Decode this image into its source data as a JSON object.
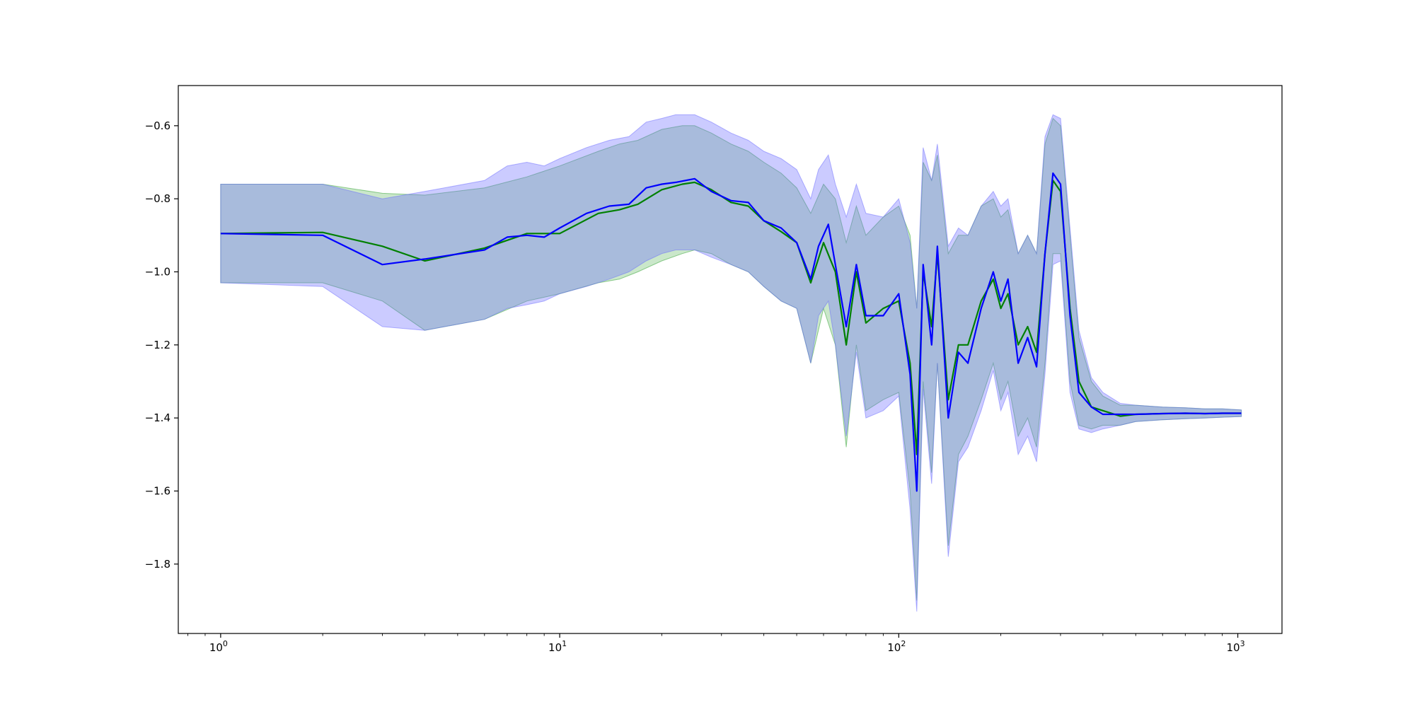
{
  "chart_data": {
    "type": "line",
    "title": "",
    "xlabel": "",
    "ylabel": "",
    "xscale": "log",
    "xlim": [
      0.75,
      1350
    ],
    "ylim": [
      -1.99,
      -0.49
    ],
    "grid": false,
    "legend": "none",
    "x_ticks": [
      {
        "value": 1,
        "base": "10",
        "exp": "0"
      },
      {
        "value": 10,
        "base": "10",
        "exp": "1"
      },
      {
        "value": 100,
        "base": "10",
        "exp": "2"
      },
      {
        "value": 1000,
        "base": "10",
        "exp": "3"
      }
    ],
    "y_ticks": [
      {
        "value": -0.6,
        "label": "−0.6"
      },
      {
        "value": -0.8,
        "label": "−0.8"
      },
      {
        "value": -1.0,
        "label": "−1.0"
      },
      {
        "value": -1.2,
        "label": "−1.2"
      },
      {
        "value": -1.4,
        "label": "−1.4"
      },
      {
        "value": -1.6,
        "label": "−1.6"
      },
      {
        "value": -1.8,
        "label": "−1.8"
      }
    ],
    "series": [
      {
        "color": "#008000",
        "band_color": "#2ca02c",
        "band_opacity": 0.25,
        "x": [
          1,
          2,
          3,
          4,
          6,
          8,
          10,
          13,
          15,
          17,
          20,
          23,
          25,
          28,
          32,
          36,
          40,
          45,
          50,
          55,
          60,
          65,
          70,
          75,
          80,
          90,
          100,
          108,
          113,
          118,
          125,
          130,
          140,
          150,
          160,
          175,
          190,
          200,
          210,
          225,
          240,
          255,
          270,
          285,
          300,
          320,
          340,
          370,
          400,
          450,
          500,
          600,
          700,
          800,
          900,
          1024
        ],
        "values": [
          -0.895,
          -0.892,
          -0.93,
          -0.97,
          -0.935,
          -0.895,
          -0.895,
          -0.84,
          -0.83,
          -0.815,
          -0.775,
          -0.76,
          -0.755,
          -0.775,
          -0.81,
          -0.82,
          -0.86,
          -0.89,
          -0.92,
          -1.03,
          -0.92,
          -1.0,
          -1.2,
          -1.0,
          -1.14,
          -1.1,
          -1.08,
          -1.25,
          -1.5,
          -1.0,
          -1.15,
          -0.95,
          -1.35,
          -1.2,
          -1.2,
          -1.08,
          -1.02,
          -1.1,
          -1.06,
          -1.2,
          -1.15,
          -1.22,
          -0.95,
          -0.75,
          -0.78,
          -1.1,
          -1.3,
          -1.37,
          -1.38,
          -1.395,
          -1.39,
          -1.388,
          -1.387,
          -1.388,
          -1.387,
          -1.387
        ],
        "upper": [
          -0.76,
          -0.76,
          -0.785,
          -0.79,
          -0.77,
          -0.74,
          -0.71,
          -0.67,
          -0.65,
          -0.64,
          -0.61,
          -0.6,
          -0.6,
          -0.62,
          -0.65,
          -0.67,
          -0.7,
          -0.73,
          -0.77,
          -0.84,
          -0.76,
          -0.8,
          -0.92,
          -0.82,
          -0.9,
          -0.85,
          -0.82,
          -0.9,
          -1.1,
          -0.7,
          -0.75,
          -0.68,
          -0.95,
          -0.9,
          -0.9,
          -0.82,
          -0.8,
          -0.85,
          -0.83,
          -0.95,
          -0.9,
          -0.95,
          -0.65,
          -0.58,
          -0.6,
          -0.9,
          -1.18,
          -1.3,
          -1.34,
          -1.365,
          -1.365,
          -1.37,
          -1.372,
          -1.375,
          -1.375,
          -1.378
        ],
        "lower": [
          -1.03,
          -1.03,
          -1.08,
          -1.16,
          -1.13,
          -1.08,
          -1.06,
          -1.03,
          -1.02,
          -1.0,
          -0.97,
          -0.95,
          -0.94,
          -0.95,
          -0.98,
          -1.0,
          -1.04,
          -1.08,
          -1.1,
          -1.25,
          -1.1,
          -1.2,
          -1.48,
          -1.2,
          -1.38,
          -1.35,
          -1.33,
          -1.6,
          -1.9,
          -1.3,
          -1.55,
          -1.25,
          -1.75,
          -1.5,
          -1.45,
          -1.35,
          -1.25,
          -1.35,
          -1.3,
          -1.45,
          -1.4,
          -1.48,
          -1.25,
          -0.95,
          -0.95,
          -1.3,
          -1.42,
          -1.43,
          -1.42,
          -1.42,
          -1.41,
          -1.405,
          -1.402,
          -1.4,
          -1.398,
          -1.396
        ]
      },
      {
        "color": "#0000ff",
        "band_color": "#6a6aff",
        "band_opacity": 0.35,
        "x": [
          1,
          2,
          3,
          4,
          6,
          7,
          8,
          9,
          10,
          12,
          14,
          16,
          18,
          20,
          22,
          25,
          28,
          32,
          36,
          40,
          45,
          50,
          55,
          58,
          62,
          65,
          70,
          75,
          80,
          90,
          100,
          108,
          113,
          118,
          125,
          130,
          140,
          150,
          160,
          175,
          190,
          200,
          210,
          225,
          240,
          255,
          270,
          285,
          300,
          320,
          340,
          370,
          400,
          450,
          500,
          600,
          700,
          800,
          900,
          1024
        ],
        "values": [
          -0.895,
          -0.9,
          -0.98,
          -0.965,
          -0.94,
          -0.905,
          -0.9,
          -0.905,
          -0.88,
          -0.84,
          -0.82,
          -0.815,
          -0.77,
          -0.76,
          -0.755,
          -0.745,
          -0.78,
          -0.805,
          -0.81,
          -0.86,
          -0.88,
          -0.92,
          -1.02,
          -0.93,
          -0.87,
          -0.98,
          -1.15,
          -0.98,
          -1.12,
          -1.12,
          -1.06,
          -1.28,
          -1.6,
          -0.98,
          -1.2,
          -0.93,
          -1.4,
          -1.22,
          -1.25,
          -1.1,
          -1.0,
          -1.08,
          -1.02,
          -1.25,
          -1.18,
          -1.26,
          -0.95,
          -0.73,
          -0.76,
          -1.12,
          -1.33,
          -1.37,
          -1.39,
          -1.39,
          -1.39,
          -1.388,
          -1.387,
          -1.388,
          -1.387,
          -1.387
        ],
        "upper": [
          -0.76,
          -0.76,
          -0.8,
          -0.78,
          -0.75,
          -0.71,
          -0.7,
          -0.71,
          -0.69,
          -0.66,
          -0.64,
          -0.63,
          -0.59,
          -0.58,
          -0.57,
          -0.57,
          -0.59,
          -0.62,
          -0.64,
          -0.67,
          -0.69,
          -0.72,
          -0.8,
          -0.72,
          -0.68,
          -0.76,
          -0.85,
          -0.76,
          -0.84,
          -0.85,
          -0.8,
          -0.92,
          -1.1,
          -0.66,
          -0.75,
          -0.65,
          -0.93,
          -0.88,
          -0.9,
          -0.82,
          -0.78,
          -0.82,
          -0.8,
          -0.95,
          -0.9,
          -0.95,
          -0.63,
          -0.57,
          -0.58,
          -0.88,
          -1.16,
          -1.29,
          -1.33,
          -1.36,
          -1.365,
          -1.37,
          -1.372,
          -1.375,
          -1.375,
          -1.378
        ],
        "lower": [
          -1.03,
          -1.04,
          -1.15,
          -1.16,
          -1.13,
          -1.1,
          -1.09,
          -1.08,
          -1.06,
          -1.04,
          -1.02,
          -1.0,
          -0.97,
          -0.95,
          -0.94,
          -0.94,
          -0.96,
          -0.98,
          -1.0,
          -1.04,
          -1.08,
          -1.1,
          -1.25,
          -1.12,
          -1.08,
          -1.2,
          -1.45,
          -1.22,
          -1.4,
          -1.38,
          -1.34,
          -1.65,
          -1.93,
          -1.32,
          -1.58,
          -1.25,
          -1.78,
          -1.52,
          -1.48,
          -1.38,
          -1.27,
          -1.38,
          -1.33,
          -1.5,
          -1.45,
          -1.52,
          -1.28,
          -0.98,
          -0.97,
          -1.33,
          -1.43,
          -1.44,
          -1.43,
          -1.42,
          -1.41,
          -1.405,
          -1.402,
          -1.4,
          -1.398,
          -1.396
        ]
      }
    ]
  }
}
